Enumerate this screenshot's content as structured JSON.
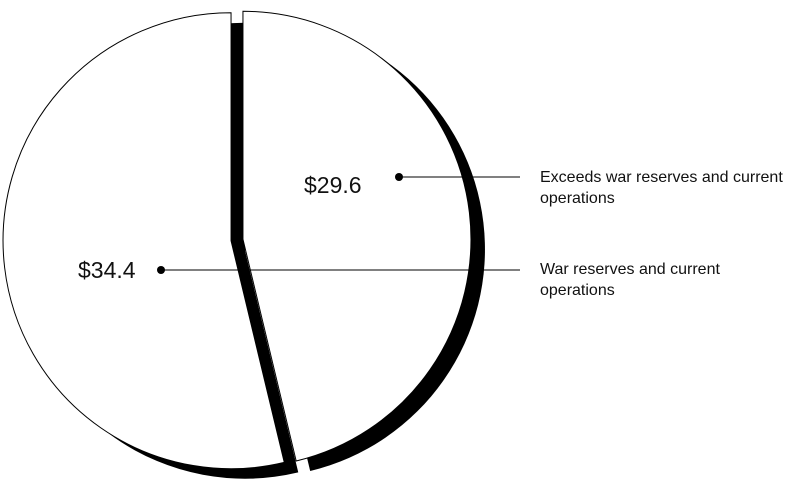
{
  "chart_data": {
    "type": "pie",
    "categories": [
      "Exceeds war reserves and current operations",
      "War reserves and current operations"
    ],
    "values": [
      29.6,
      34.4
    ],
    "value_labels": [
      "$29.6",
      "$34.4"
    ],
    "colors": [
      "#ffffff",
      "#ffffff"
    ],
    "shadow_color": "#000000"
  }
}
